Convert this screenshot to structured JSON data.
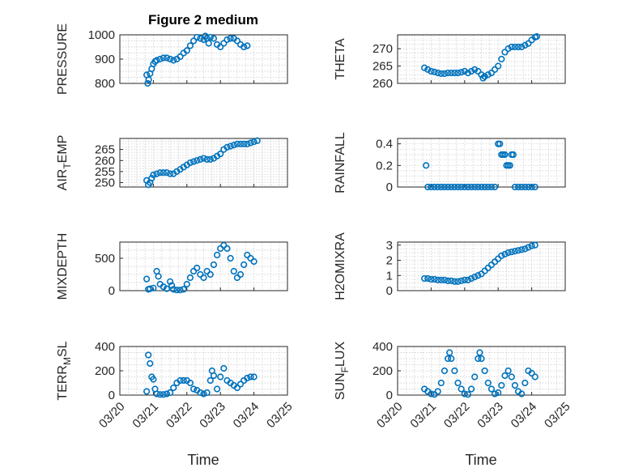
{
  "figure": {
    "title": "Figure 2 medium",
    "x_label": "Time"
  },
  "colors": {
    "marker": "#0072bd",
    "axes": "#262626",
    "grid": "#c8c8c8"
  },
  "chart_data": [
    {
      "type": "scatter",
      "ylabel": "PRESSURE",
      "ylim": [
        800,
        1000
      ],
      "yticks": [
        800,
        900,
        1000
      ],
      "xlim": [
        0,
        5
      ],
      "xticks": [
        "03/20",
        "03/21",
        "03/22",
        "03/23",
        "03/24",
        "03/25"
      ],
      "points": [
        [
          0.8,
          835
        ],
        [
          0.83,
          800
        ],
        [
          0.86,
          815
        ],
        [
          0.9,
          840
        ],
        [
          0.95,
          860
        ],
        [
          1.0,
          880
        ],
        [
          1.05,
          890
        ],
        [
          1.1,
          895
        ],
        [
          1.2,
          900
        ],
        [
          1.3,
          905
        ],
        [
          1.4,
          905
        ],
        [
          1.5,
          900
        ],
        [
          1.6,
          895
        ],
        [
          1.7,
          900
        ],
        [
          1.8,
          910
        ],
        [
          1.9,
          925
        ],
        [
          2.0,
          935
        ],
        [
          2.1,
          955
        ],
        [
          2.2,
          975
        ],
        [
          2.3,
          990
        ],
        [
          2.4,
          985
        ],
        [
          2.5,
          980
        ],
        [
          2.55,
          995
        ],
        [
          2.6,
          985
        ],
        [
          2.65,
          965
        ],
        [
          2.7,
          990
        ],
        [
          2.8,
          985
        ],
        [
          2.9,
          960
        ],
        [
          3.0,
          950
        ],
        [
          3.1,
          965
        ],
        [
          3.2,
          980
        ],
        [
          3.3,
          985
        ],
        [
          3.4,
          985
        ],
        [
          3.5,
          975
        ],
        [
          3.6,
          960
        ],
        [
          3.7,
          950
        ],
        [
          3.8,
          955
        ]
      ]
    },
    {
      "type": "scatter",
      "ylabel": "THETA",
      "ylim": [
        260,
        274
      ],
      "yticks": [
        260,
        265,
        270
      ],
      "xlim": [
        0,
        5
      ],
      "xticks": [
        "03/20",
        "03/21",
        "03/22",
        "03/23",
        "03/24",
        "03/25"
      ],
      "points": [
        [
          0.8,
          264.5
        ],
        [
          0.9,
          264
        ],
        [
          1.0,
          263.5
        ],
        [
          1.1,
          263.3
        ],
        [
          1.2,
          263
        ],
        [
          1.3,
          262.8
        ],
        [
          1.4,
          262.8
        ],
        [
          1.5,
          263
        ],
        [
          1.6,
          263
        ],
        [
          1.7,
          263
        ],
        [
          1.8,
          263
        ],
        [
          1.9,
          263.2
        ],
        [
          2.0,
          263.5
        ],
        [
          2.1,
          263
        ],
        [
          2.2,
          263.5
        ],
        [
          2.3,
          264
        ],
        [
          2.4,
          263.5
        ],
        [
          2.5,
          262.5
        ],
        [
          2.55,
          261.5
        ],
        [
          2.6,
          262
        ],
        [
          2.7,
          262.5
        ],
        [
          2.8,
          263
        ],
        [
          2.9,
          264
        ],
        [
          3.0,
          265
        ],
        [
          3.1,
          267
        ],
        [
          3.2,
          269
        ],
        [
          3.3,
          270
        ],
        [
          3.4,
          270.5
        ],
        [
          3.5,
          270.5
        ],
        [
          3.6,
          270.5
        ],
        [
          3.7,
          270.5
        ],
        [
          3.8,
          271
        ],
        [
          3.9,
          271.5
        ],
        [
          4.0,
          272.5
        ],
        [
          4.1,
          273.3
        ],
        [
          4.15,
          273.5
        ]
      ]
    },
    {
      "type": "scatter",
      "ylabel": "AIR_TEMP",
      "ylim": [
        248,
        270
      ],
      "yticks": [
        250,
        255,
        260,
        265
      ],
      "xlim": [
        0,
        5
      ],
      "xticks": [
        "03/20",
        "03/21",
        "03/22",
        "03/23",
        "03/24",
        "03/25"
      ],
      "points": [
        [
          0.8,
          251
        ],
        [
          0.85,
          249
        ],
        [
          0.9,
          250
        ],
        [
          0.95,
          252
        ],
        [
          1.0,
          253.5
        ],
        [
          1.1,
          254
        ],
        [
          1.2,
          254.5
        ],
        [
          1.3,
          254.5
        ],
        [
          1.4,
          254.5
        ],
        [
          1.5,
          254
        ],
        [
          1.6,
          254
        ],
        [
          1.7,
          255
        ],
        [
          1.8,
          256
        ],
        [
          1.9,
          257
        ],
        [
          2.0,
          258
        ],
        [
          2.1,
          259
        ],
        [
          2.2,
          259.5
        ],
        [
          2.3,
          260
        ],
        [
          2.4,
          260.5
        ],
        [
          2.5,
          261
        ],
        [
          2.6,
          260.5
        ],
        [
          2.7,
          260.5
        ],
        [
          2.8,
          261
        ],
        [
          2.9,
          262
        ],
        [
          3.0,
          263
        ],
        [
          3.1,
          265
        ],
        [
          3.2,
          266
        ],
        [
          3.3,
          266.5
        ],
        [
          3.4,
          267
        ],
        [
          3.5,
          267.5
        ],
        [
          3.6,
          267.5
        ],
        [
          3.7,
          267.5
        ],
        [
          3.8,
          267.5
        ],
        [
          3.9,
          268
        ],
        [
          4.0,
          268.5
        ],
        [
          4.1,
          269
        ]
      ]
    },
    {
      "type": "scatter",
      "ylabel": "RAINFALL",
      "ylim": [
        0,
        0.45
      ],
      "yticks": [
        0,
        0.2,
        0.4
      ],
      "xlim": [
        0,
        5
      ],
      "xticks": [
        "03/20",
        "03/21",
        "03/22",
        "03/23",
        "03/24",
        "03/25"
      ],
      "points": [
        [
          0.85,
          0.2
        ],
        [
          0.9,
          0
        ],
        [
          1.0,
          0
        ],
        [
          1.1,
          0
        ],
        [
          1.2,
          0
        ],
        [
          1.3,
          0
        ],
        [
          1.4,
          0
        ],
        [
          1.5,
          0
        ],
        [
          1.6,
          0
        ],
        [
          1.7,
          0
        ],
        [
          1.8,
          0
        ],
        [
          1.9,
          0
        ],
        [
          2.0,
          0
        ],
        [
          2.1,
          0
        ],
        [
          2.2,
          0
        ],
        [
          2.3,
          0
        ],
        [
          2.4,
          0
        ],
        [
          2.5,
          0
        ],
        [
          2.6,
          0
        ],
        [
          2.7,
          0
        ],
        [
          2.8,
          0
        ],
        [
          2.9,
          0
        ],
        [
          3.0,
          0.4
        ],
        [
          3.05,
          0.4
        ],
        [
          3.1,
          0.3
        ],
        [
          3.15,
          0.3
        ],
        [
          3.2,
          0.3
        ],
        [
          3.25,
          0.2
        ],
        [
          3.3,
          0.2
        ],
        [
          3.35,
          0.2
        ],
        [
          3.4,
          0.3
        ],
        [
          3.45,
          0.3
        ],
        [
          3.5,
          0
        ],
        [
          3.6,
          0
        ],
        [
          3.7,
          0
        ],
        [
          3.8,
          0
        ],
        [
          3.9,
          0
        ],
        [
          4.0,
          0
        ],
        [
          4.1,
          0
        ]
      ]
    },
    {
      "type": "scatter",
      "ylabel": "MIXDEPTH",
      "ylim": [
        0,
        750
      ],
      "yticks": [
        0,
        500
      ],
      "xlim": [
        0,
        5
      ],
      "xticks": [
        "03/20",
        "03/21",
        "03/22",
        "03/23",
        "03/24",
        "03/25"
      ],
      "points": [
        [
          0.8,
          180
        ],
        [
          0.85,
          20
        ],
        [
          0.9,
          30
        ],
        [
          1.0,
          40
        ],
        [
          1.1,
          300
        ],
        [
          1.15,
          220
        ],
        [
          1.2,
          100
        ],
        [
          1.3,
          60
        ],
        [
          1.4,
          30
        ],
        [
          1.5,
          140
        ],
        [
          1.55,
          80
        ],
        [
          1.6,
          20
        ],
        [
          1.7,
          10
        ],
        [
          1.8,
          10
        ],
        [
          1.9,
          20
        ],
        [
          2.0,
          100
        ],
        [
          2.1,
          200
        ],
        [
          2.2,
          300
        ],
        [
          2.3,
          350
        ],
        [
          2.4,
          250
        ],
        [
          2.5,
          200
        ],
        [
          2.6,
          300
        ],
        [
          2.7,
          250
        ],
        [
          2.8,
          400
        ],
        [
          2.9,
          550
        ],
        [
          3.0,
          650
        ],
        [
          3.1,
          700
        ],
        [
          3.2,
          650
        ],
        [
          3.3,
          500
        ],
        [
          3.4,
          300
        ],
        [
          3.5,
          200
        ],
        [
          3.6,
          250
        ],
        [
          3.7,
          400
        ],
        [
          3.8,
          550
        ],
        [
          3.9,
          500
        ],
        [
          4.0,
          450
        ]
      ]
    },
    {
      "type": "scatter",
      "ylabel": "H2OMIXRA",
      "ylim": [
        0,
        3.2
      ],
      "yticks": [
        0,
        1,
        2,
        3
      ],
      "xlim": [
        0,
        5
      ],
      "xticks": [
        "03/20",
        "03/21",
        "03/22",
        "03/23",
        "03/24",
        "03/25"
      ],
      "points": [
        [
          0.8,
          0.8
        ],
        [
          0.9,
          0.8
        ],
        [
          1.0,
          0.75
        ],
        [
          1.1,
          0.75
        ],
        [
          1.2,
          0.7
        ],
        [
          1.3,
          0.7
        ],
        [
          1.4,
          0.7
        ],
        [
          1.5,
          0.65
        ],
        [
          1.6,
          0.65
        ],
        [
          1.7,
          0.6
        ],
        [
          1.8,
          0.6
        ],
        [
          1.9,
          0.65
        ],
        [
          2.0,
          0.7
        ],
        [
          2.1,
          0.7
        ],
        [
          2.2,
          0.8
        ],
        [
          2.3,
          0.9
        ],
        [
          2.4,
          1.0
        ],
        [
          2.5,
          1.1
        ],
        [
          2.6,
          1.3
        ],
        [
          2.7,
          1.5
        ],
        [
          2.8,
          1.7
        ],
        [
          2.9,
          1.9
        ],
        [
          3.0,
          2.1
        ],
        [
          3.1,
          2.3
        ],
        [
          3.2,
          2.4
        ],
        [
          3.3,
          2.5
        ],
        [
          3.4,
          2.55
        ],
        [
          3.5,
          2.6
        ],
        [
          3.6,
          2.65
        ],
        [
          3.7,
          2.7
        ],
        [
          3.8,
          2.75
        ],
        [
          3.9,
          2.85
        ],
        [
          4.0,
          2.95
        ],
        [
          4.1,
          3.0
        ]
      ]
    },
    {
      "type": "scatter",
      "ylabel": "TERR_MSL",
      "ylim": [
        0,
        400
      ],
      "yticks": [
        0,
        200,
        400
      ],
      "xlim": [
        0,
        5
      ],
      "xticks": [
        "03/20",
        "03/21",
        "03/22",
        "03/23",
        "03/24",
        "03/25"
      ],
      "points": [
        [
          0.8,
          30
        ],
        [
          0.85,
          330
        ],
        [
          0.9,
          260
        ],
        [
          0.95,
          150
        ],
        [
          1.0,
          130
        ],
        [
          1.05,
          50
        ],
        [
          1.1,
          10
        ],
        [
          1.2,
          5
        ],
        [
          1.3,
          5
        ],
        [
          1.4,
          10
        ],
        [
          1.5,
          20
        ],
        [
          1.6,
          60
        ],
        [
          1.7,
          100
        ],
        [
          1.8,
          120
        ],
        [
          1.9,
          120
        ],
        [
          2.0,
          120
        ],
        [
          2.1,
          100
        ],
        [
          2.2,
          50
        ],
        [
          2.3,
          40
        ],
        [
          2.4,
          20
        ],
        [
          2.5,
          10
        ],
        [
          2.6,
          20
        ],
        [
          2.7,
          120
        ],
        [
          2.75,
          200
        ],
        [
          2.8,
          160
        ],
        [
          2.9,
          50
        ],
        [
          3.0,
          150
        ],
        [
          3.1,
          220
        ],
        [
          3.2,
          120
        ],
        [
          3.3,
          100
        ],
        [
          3.4,
          80
        ],
        [
          3.5,
          60
        ],
        [
          3.6,
          90
        ],
        [
          3.7,
          120
        ],
        [
          3.8,
          140
        ],
        [
          3.9,
          150
        ],
        [
          4.0,
          150
        ]
      ]
    },
    {
      "type": "scatter",
      "ylabel": "SUN_FLUX",
      "ylim": [
        0,
        400
      ],
      "yticks": [
        0,
        200,
        400
      ],
      "xlim": [
        0,
        5
      ],
      "xticks": [
        "03/20",
        "03/21",
        "03/22",
        "03/23",
        "03/24",
        "03/25"
      ],
      "points": [
        [
          0.8,
          50
        ],
        [
          0.9,
          30
        ],
        [
          1.0,
          10
        ],
        [
          1.1,
          5
        ],
        [
          1.2,
          30
        ],
        [
          1.3,
          100
        ],
        [
          1.4,
          200
        ],
        [
          1.5,
          300
        ],
        [
          1.55,
          350
        ],
        [
          1.6,
          300
        ],
        [
          1.7,
          200
        ],
        [
          1.8,
          100
        ],
        [
          1.9,
          50
        ],
        [
          2.0,
          10
        ],
        [
          2.1,
          5
        ],
        [
          2.2,
          50
        ],
        [
          2.3,
          150
        ],
        [
          2.4,
          300
        ],
        [
          2.45,
          350
        ],
        [
          2.5,
          300
        ],
        [
          2.6,
          200
        ],
        [
          2.7,
          100
        ],
        [
          2.8,
          50
        ],
        [
          2.9,
          10
        ],
        [
          3.0,
          20
        ],
        [
          3.1,
          80
        ],
        [
          3.2,
          160
        ],
        [
          3.3,
          200
        ],
        [
          3.4,
          150
        ],
        [
          3.5,
          80
        ],
        [
          3.6,
          30
        ],
        [
          3.7,
          10
        ],
        [
          3.8,
          100
        ],
        [
          3.9,
          200
        ],
        [
          4.0,
          180
        ],
        [
          4.1,
          150
        ]
      ]
    }
  ]
}
